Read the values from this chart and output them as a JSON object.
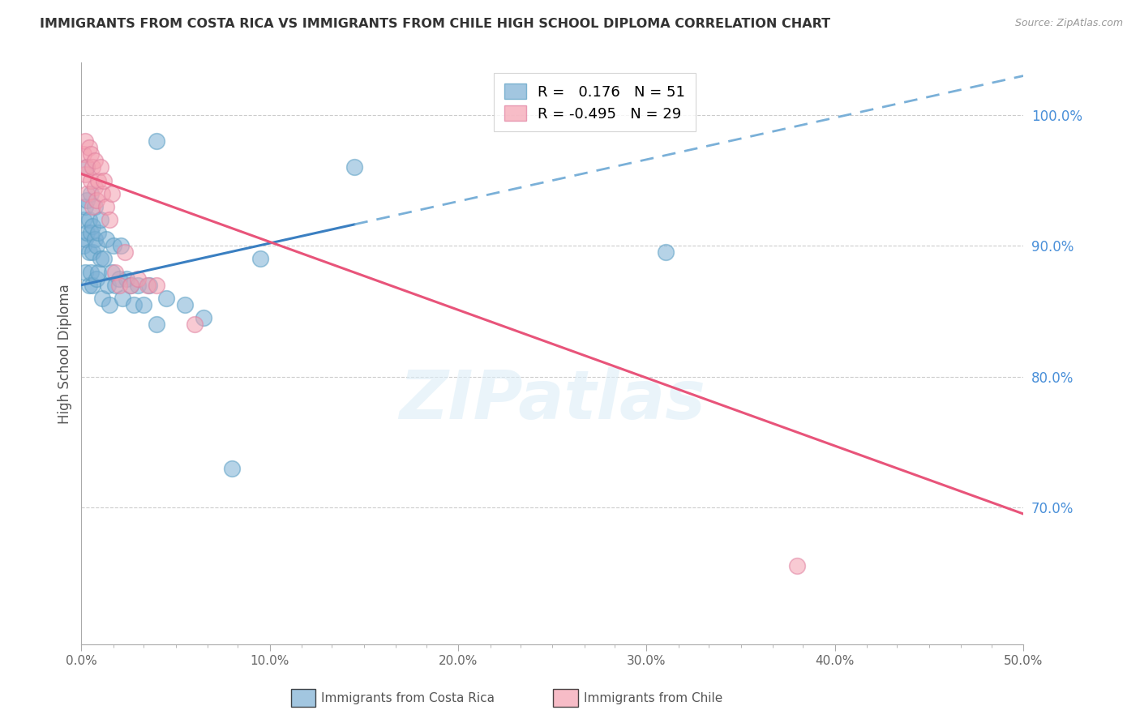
{
  "title": "IMMIGRANTS FROM COSTA RICA VS IMMIGRANTS FROM CHILE HIGH SCHOOL DIPLOMA CORRELATION CHART",
  "source": "Source: ZipAtlas.com",
  "ylabel": "High School Diploma",
  "right_yticks": [
    1.0,
    0.9,
    0.8,
    0.7
  ],
  "right_yticklabels": [
    "100.0%",
    "90.0%",
    "80.0%",
    "70.0%"
  ],
  "xlim": [
    0.0,
    0.5
  ],
  "ylim": [
    0.595,
    1.04
  ],
  "xticklabels": [
    "0.0%",
    "",
    "",
    "",
    "",
    "",
    "10.0%",
    "",
    "",
    "",
    "",
    "",
    "20.0%",
    "",
    "",
    "",
    "",
    "",
    "30.0%",
    "",
    "",
    "",
    "",
    "",
    "40.0%",
    "",
    "",
    "",
    "",
    "",
    "50.0%"
  ],
  "xticks": [
    0.0,
    0.017,
    0.033,
    0.05,
    0.067,
    0.083,
    0.1,
    0.117,
    0.133,
    0.15,
    0.167,
    0.183,
    0.2,
    0.217,
    0.233,
    0.25,
    0.267,
    0.283,
    0.3,
    0.317,
    0.333,
    0.35,
    0.367,
    0.383,
    0.4,
    0.417,
    0.433,
    0.45,
    0.467,
    0.483,
    0.5
  ],
  "major_xticks": [
    0.0,
    0.1,
    0.2,
    0.3,
    0.4,
    0.5
  ],
  "major_xticklabels": [
    "0.0%",
    "10.0%",
    "20.0%",
    "30.0%",
    "40.0%",
    "50.0%"
  ],
  "costa_rica_color": "#7bafd4",
  "chile_color": "#f4a0b0",
  "costa_rica_edge": "#5a9fc4",
  "chile_edge": "#e080a0",
  "costa_rica_r": 0.176,
  "costa_rica_n": 51,
  "chile_r": -0.495,
  "chile_n": 29,
  "legend_label_cr": "Immigrants from Costa Rica",
  "legend_label_ch": "Immigrants from Chile",
  "cr_trend_start_x": 0.0,
  "cr_trend_end_x": 0.5,
  "cr_trend_solid_end": 0.145,
  "cr_trend_y_at_0": 0.87,
  "cr_trend_y_at_50": 1.03,
  "ch_trend_y_at_0": 0.955,
  "ch_trend_y_at_50": 0.695,
  "costa_rica_x": [
    0.001,
    0.001,
    0.002,
    0.002,
    0.002,
    0.003,
    0.003,
    0.003,
    0.004,
    0.004,
    0.004,
    0.005,
    0.005,
    0.005,
    0.006,
    0.006,
    0.006,
    0.007,
    0.007,
    0.008,
    0.008,
    0.009,
    0.009,
    0.01,
    0.01,
    0.011,
    0.012,
    0.013,
    0.014,
    0.015,
    0.016,
    0.017,
    0.018,
    0.02,
    0.021,
    0.022,
    0.024,
    0.026,
    0.028,
    0.03,
    0.033,
    0.036,
    0.04,
    0.045,
    0.055,
    0.065,
    0.08,
    0.095,
    0.145,
    0.04,
    0.31
  ],
  "costa_rica_y": [
    0.9,
    0.92,
    0.88,
    0.905,
    0.93,
    0.91,
    0.935,
    0.96,
    0.87,
    0.895,
    0.92,
    0.88,
    0.91,
    0.94,
    0.87,
    0.895,
    0.915,
    0.905,
    0.93,
    0.875,
    0.9,
    0.88,
    0.91,
    0.89,
    0.92,
    0.86,
    0.89,
    0.905,
    0.87,
    0.855,
    0.88,
    0.9,
    0.87,
    0.875,
    0.9,
    0.86,
    0.875,
    0.87,
    0.855,
    0.87,
    0.855,
    0.87,
    0.84,
    0.86,
    0.855,
    0.845,
    0.73,
    0.89,
    0.96,
    0.98,
    0.895
  ],
  "chile_x": [
    0.001,
    0.002,
    0.002,
    0.003,
    0.003,
    0.004,
    0.005,
    0.005,
    0.006,
    0.006,
    0.007,
    0.007,
    0.008,
    0.009,
    0.01,
    0.011,
    0.012,
    0.013,
    0.015,
    0.016,
    0.018,
    0.02,
    0.023,
    0.026,
    0.03,
    0.035,
    0.04,
    0.06,
    0.38
  ],
  "chile_y": [
    0.97,
    0.955,
    0.98,
    0.96,
    0.94,
    0.975,
    0.95,
    0.97,
    0.93,
    0.96,
    0.945,
    0.965,
    0.935,
    0.95,
    0.96,
    0.94,
    0.95,
    0.93,
    0.92,
    0.94,
    0.88,
    0.87,
    0.895,
    0.87,
    0.875,
    0.87,
    0.87,
    0.84,
    0.655
  ],
  "watermark": "ZIPatlas",
  "background_color": "#ffffff",
  "grid_color": "#cccccc"
}
